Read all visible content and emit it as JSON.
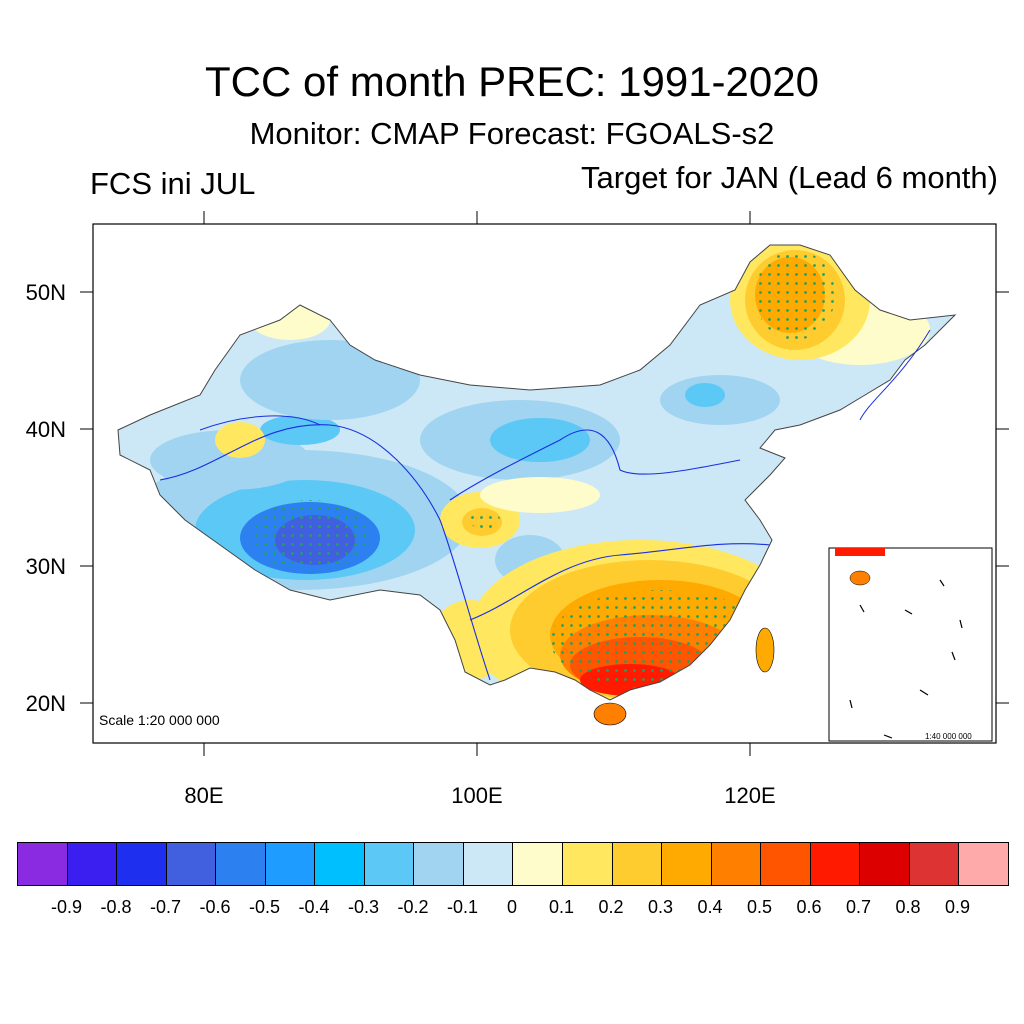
{
  "title": "TCC of month PREC: 1991-2020",
  "subtitle": "Monitor: CMAP   Forecast: FGOALS-s2",
  "left_label": "FCS ini JUL",
  "right_label": "Target for JAN (Lead 6 month)",
  "axes": {
    "y_ticks": [
      "50N",
      "40N",
      "30N",
      "20N"
    ],
    "x_ticks": [
      "80E",
      "100E",
      "120E"
    ]
  },
  "scale_main": "Scale 1:20 000 000",
  "scale_inset": "1:40 000 000",
  "colorbar": {
    "colors": [
      "#8a2be2",
      "#3a1ff0",
      "#1e2ff0",
      "#4060e0",
      "#2c80f0",
      "#1e9cff",
      "#00bfff",
      "#5cc8f5",
      "#a0d4f0",
      "#cce8f6",
      "#fffccc",
      "#ffe860",
      "#ffcc30",
      "#ffaa00",
      "#ff8000",
      "#ff5500",
      "#ff1a00",
      "#dd0000",
      "#dd3333",
      "#ffaaaa"
    ],
    "labels": [
      "-0.9",
      "-0.8",
      "-0.7",
      "-0.6",
      "-0.5",
      "-0.4",
      "-0.3",
      "-0.2",
      "-0.1",
      "0",
      "0.1",
      "0.2",
      "0.3",
      "0.4",
      "0.5",
      "0.6",
      "0.7",
      "0.8",
      "0.9"
    ]
  }
}
